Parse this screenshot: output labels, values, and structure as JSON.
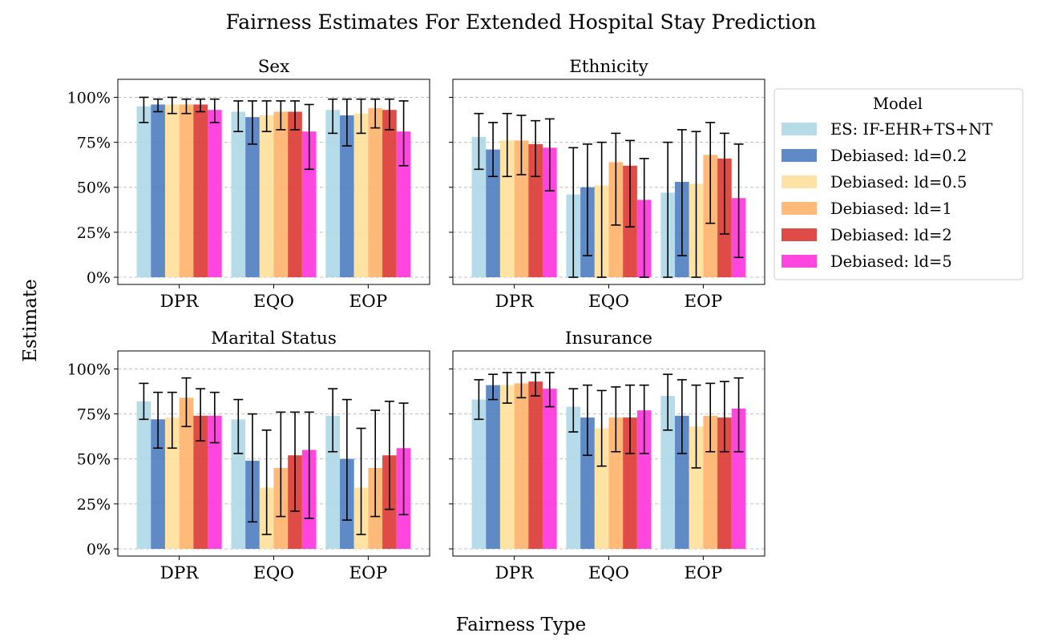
{
  "chart_data": {
    "type": "bar",
    "title": "Fairness Estimates For Extended Hospital Stay Prediction",
    "xlabel": "Fairness Type",
    "ylabel": "Estimate",
    "categories": [
      "DPR",
      "EQO",
      "EOP"
    ],
    "ylim": [
      -0.04,
      1.1
    ],
    "yticks": [
      0,
      0.25,
      0.5,
      0.75,
      1.0
    ],
    "ytick_labels": [
      "0%",
      "25%",
      "50%",
      "75%",
      "100%"
    ],
    "grid": "horizontal dashed",
    "error_bars": true,
    "legend": {
      "title": "Model",
      "placement": "right",
      "entries": [
        {
          "name": "ES: IF-EHR+TS+NT",
          "color": "#add8e6"
        },
        {
          "name": "Debiased: ld=0.2",
          "color": "#4f7dbf"
        },
        {
          "name": "Debiased: ld=0.5",
          "color": "#ffe09a"
        },
        {
          "name": "Debiased: ld=1",
          "color": "#ffb36a"
        },
        {
          "name": "Debiased: ld=2",
          "color": "#dc3833"
        },
        {
          "name": "Debiased: ld=5",
          "color": "#ff33dd"
        }
      ]
    },
    "panels": [
      {
        "title": "Sex",
        "series": [
          {
            "values": [
              0.95,
              0.92,
              0.93
            ],
            "lower": [
              0.86,
              0.81,
              0.8
            ],
            "upper": [
              1.0,
              0.98,
              0.99
            ]
          },
          {
            "values": [
              0.96,
              0.89,
              0.9
            ],
            "lower": [
              0.92,
              0.74,
              0.73
            ],
            "upper": [
              0.99,
              0.98,
              0.99
            ]
          },
          {
            "values": [
              0.96,
              0.9,
              0.91
            ],
            "lower": [
              0.91,
              0.81,
              0.8
            ],
            "upper": [
              1.0,
              0.98,
              0.99
            ]
          },
          {
            "values": [
              0.96,
              0.92,
              0.94
            ],
            "lower": [
              0.91,
              0.82,
              0.83
            ],
            "upper": [
              0.99,
              0.98,
              0.99
            ]
          },
          {
            "values": [
              0.96,
              0.92,
              0.93
            ],
            "lower": [
              0.92,
              0.82,
              0.82
            ],
            "upper": [
              0.99,
              0.98,
              0.99
            ]
          },
          {
            "values": [
              0.93,
              0.81,
              0.81
            ],
            "lower": [
              0.86,
              0.6,
              0.62
            ],
            "upper": [
              0.99,
              0.96,
              0.98
            ]
          }
        ]
      },
      {
        "title": "Ethnicity",
        "series": [
          {
            "values": [
              0.78,
              0.46,
              0.47
            ],
            "lower": [
              0.6,
              0.0,
              0.0
            ],
            "upper": [
              0.91,
              0.72,
              0.75
            ]
          },
          {
            "values": [
              0.71,
              0.5,
              0.53
            ],
            "lower": [
              0.56,
              0.12,
              0.12
            ],
            "upper": [
              0.86,
              0.74,
              0.82
            ]
          },
          {
            "values": [
              0.76,
              0.51,
              0.52
            ],
            "lower": [
              0.56,
              0.0,
              0.0
            ],
            "upper": [
              0.91,
              0.75,
              0.81
            ]
          },
          {
            "values": [
              0.76,
              0.64,
              0.68
            ],
            "lower": [
              0.57,
              0.29,
              0.3
            ],
            "upper": [
              0.9,
              0.8,
              0.86
            ]
          },
          {
            "values": [
              0.74,
              0.62,
              0.66
            ],
            "lower": [
              0.56,
              0.28,
              0.24
            ],
            "upper": [
              0.87,
              0.76,
              0.8
            ]
          },
          {
            "values": [
              0.72,
              0.43,
              0.44
            ],
            "lower": [
              0.48,
              0.0,
              0.11
            ],
            "upper": [
              0.88,
              0.66,
              0.74
            ]
          }
        ]
      },
      {
        "title": "Marital Status",
        "series": [
          {
            "values": [
              0.82,
              0.72,
              0.74
            ],
            "lower": [
              0.72,
              0.53,
              0.54
            ],
            "upper": [
              0.92,
              0.83,
              0.89
            ]
          },
          {
            "values": [
              0.72,
              0.49,
              0.5
            ],
            "lower": [
              0.56,
              0.15,
              0.16
            ],
            "upper": [
              0.87,
              0.75,
              0.83
            ]
          },
          {
            "values": [
              0.73,
              0.34,
              0.34
            ],
            "lower": [
              0.56,
              0.08,
              0.08
            ],
            "upper": [
              0.87,
              0.66,
              0.67
            ]
          },
          {
            "values": [
              0.84,
              0.45,
              0.45
            ],
            "lower": [
              0.68,
              0.18,
              0.18
            ],
            "upper": [
              0.95,
              0.76,
              0.77
            ]
          },
          {
            "values": [
              0.74,
              0.52,
              0.52
            ],
            "lower": [
              0.6,
              0.21,
              0.22
            ],
            "upper": [
              0.89,
              0.76,
              0.82
            ]
          },
          {
            "values": [
              0.74,
              0.55,
              0.56
            ],
            "lower": [
              0.59,
              0.17,
              0.19
            ],
            "upper": [
              0.87,
              0.76,
              0.81
            ]
          }
        ]
      },
      {
        "title": "Insurance",
        "series": [
          {
            "values": [
              0.83,
              0.79,
              0.85
            ],
            "lower": [
              0.72,
              0.65,
              0.66
            ],
            "upper": [
              0.94,
              0.89,
              0.97
            ]
          },
          {
            "values": [
              0.91,
              0.73,
              0.74
            ],
            "lower": [
              0.83,
              0.52,
              0.53
            ],
            "upper": [
              0.97,
              0.91,
              0.94
            ]
          },
          {
            "values": [
              0.91,
              0.67,
              0.68
            ],
            "lower": [
              0.81,
              0.46,
              0.45
            ],
            "upper": [
              0.98,
              0.88,
              0.91
            ]
          },
          {
            "values": [
              0.92,
              0.73,
              0.74
            ],
            "lower": [
              0.84,
              0.54,
              0.54
            ],
            "upper": [
              0.98,
              0.9,
              0.92
            ]
          },
          {
            "values": [
              0.93,
              0.73,
              0.73
            ],
            "lower": [
              0.85,
              0.53,
              0.54
            ],
            "upper": [
              0.98,
              0.91,
              0.93
            ]
          },
          {
            "values": [
              0.89,
              0.77,
              0.78
            ],
            "lower": [
              0.79,
              0.53,
              0.54
            ],
            "upper": [
              0.98,
              0.91,
              0.95
            ]
          }
        ]
      }
    ]
  }
}
